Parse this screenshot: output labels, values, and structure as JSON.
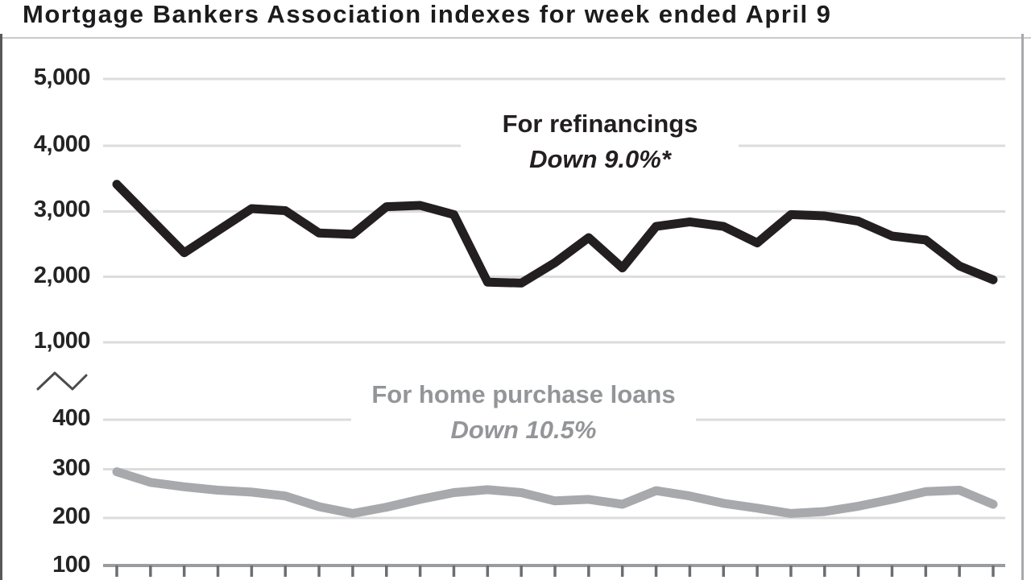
{
  "title": "Mortgage Bankers Association indexes for week ended April 9",
  "chart_data": {
    "type": "line",
    "x_ticks_count": 27,
    "x_tick_labels": [],
    "y_axis_break_between": [
      1000,
      400
    ],
    "y_tick_labels_upper": [
      "5,000",
      "4,000",
      "3,000",
      "2,000",
      "1,000"
    ],
    "y_tick_labels_lower": [
      "400",
      "300",
      "200",
      "100"
    ],
    "ylim_upper": [
      1000,
      5000
    ],
    "ylim_lower": [
      100,
      400
    ],
    "grid": "horizontal-only",
    "legend_position": "inline-annotations",
    "series": [
      {
        "name": "For refinancings",
        "annotation": "Down 9.0%*",
        "color": "#231f20",
        "values": [
          3400,
          2880,
          2360,
          2695,
          3030,
          3000,
          2660,
          2640,
          3060,
          3080,
          2940,
          1915,
          1900,
          2210,
          2590,
          2130,
          2760,
          2830,
          2760,
          2510,
          2940,
          2920,
          2840,
          2615,
          2555,
          2160,
          1950
        ]
      },
      {
        "name": "For home purchase loans",
        "annotation": "Down 10.5%",
        "color": "#a7a9ac",
        "values": [
          293,
          271,
          262,
          255,
          251,
          243,
          221,
          207,
          220,
          236,
          250,
          256,
          250,
          233,
          236,
          226,
          254,
          243,
          228,
          218,
          207,
          211,
          222,
          236,
          252,
          255,
          226
        ]
      }
    ]
  },
  "colors": {
    "refinancings_line": "#231f20",
    "purchase_line": "#a7a9ac",
    "gridline": "#dcdcdd",
    "axis_line": "#9a9ca0",
    "tick": "#6d6e71",
    "title_text": "#1c1c1e",
    "gray_label": "#939598"
  }
}
